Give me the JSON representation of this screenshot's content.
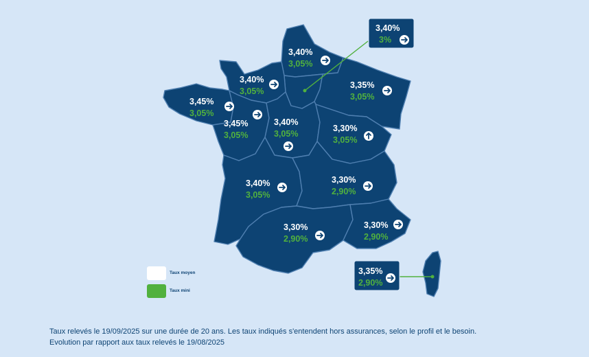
{
  "colors": {
    "background": "#d6e6f7",
    "map_fill": "#0d4373",
    "region_border": "#4f7fb0",
    "avg_rate": "#ffffff",
    "min_rate": "#51b13e"
  },
  "regions": [
    {
      "id": "hauts-de-france",
      "avg": "3,40%",
      "min": "3,05%",
      "trend": "stable",
      "icon": "arrow-right-icon"
    },
    {
      "id": "ile-de-france",
      "avg": "3,40%",
      "min": "3%",
      "trend": "stable",
      "icon": "arrow-right-icon"
    },
    {
      "id": "normandie",
      "avg": "3,40%",
      "min": "3,05%",
      "trend": "stable",
      "icon": "arrow-right-icon"
    },
    {
      "id": "grand-est",
      "avg": "3,35%",
      "min": "3,05%",
      "trend": "stable",
      "icon": "arrow-right-icon"
    },
    {
      "id": "bretagne",
      "avg": "3,45%",
      "min": "3,05%",
      "trend": "stable",
      "icon": "arrow-right-icon"
    },
    {
      "id": "pays-de-la-loire",
      "avg": "3,45%",
      "min": "3,05%",
      "trend": "stable",
      "icon": "arrow-right-icon"
    },
    {
      "id": "centre-val-de-loire",
      "avg": "3,40%",
      "min": "3,05%",
      "trend": "stable",
      "icon": "arrow-right-icon"
    },
    {
      "id": "bourgogne-franche-comte",
      "avg": "3,30%",
      "min": "3,05%",
      "trend": "up",
      "icon": "arrow-up-icon"
    },
    {
      "id": "nouvelle-aquitaine",
      "avg": "3,40%",
      "min": "3,05%",
      "trend": "stable",
      "icon": "arrow-right-icon"
    },
    {
      "id": "auvergne-rhone-alpes",
      "avg": "3,30%",
      "min": "2,90%",
      "trend": "stable",
      "icon": "arrow-right-icon"
    },
    {
      "id": "occitanie",
      "avg": "3,30%",
      "min": "2,90%",
      "trend": "stable",
      "icon": "arrow-right-icon"
    },
    {
      "id": "provence-alpes-cote-d-azur",
      "avg": "3,30%",
      "min": "2,90%",
      "trend": "stable",
      "icon": "arrow-right-icon"
    },
    {
      "id": "corse",
      "avg": "3,35%",
      "min": "2,90%",
      "trend": "stable",
      "icon": "arrow-right-icon"
    }
  ],
  "legend": {
    "avg_label": "Taux moyen",
    "min_label": "Taux mini"
  },
  "footnote": {
    "line1": "Taux relevés le 19/09/2025 sur une durée de 20 ans. Les taux indiqués s'entendent hors assurances, selon le profil et le besoin.",
    "line2": "Evolution par rapport aux taux relevés le 19/08/2025"
  }
}
